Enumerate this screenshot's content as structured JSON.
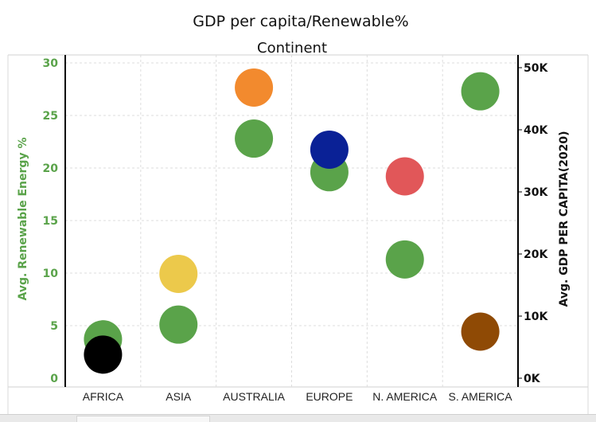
{
  "chart_data": {
    "type": "scatter",
    "title": "GDP per capita/Renewable%",
    "subtitle": "Continent",
    "categories": [
      "AFRICA",
      "ASIA",
      "AUSTRALIA",
      "EUROPE",
      "N. AMERICA",
      "S. AMERICA"
    ],
    "y_left": {
      "label": "Avg. Renewable Energy %",
      "range": [
        0,
        30
      ],
      "ticks": [
        "0",
        "5",
        "10",
        "15",
        "20",
        "25",
        "30"
      ],
      "color": "#5aa34a"
    },
    "y_right": {
      "label": "Avg. GDP PER CAPITA(2020)",
      "range": [
        0,
        50000
      ],
      "ticks": [
        "0K",
        "10K",
        "20K",
        "30K",
        "40K",
        "50K"
      ]
    },
    "series": [
      {
        "axis": "left",
        "color": "#5aa34a",
        "values": [
          3.7,
          5.1,
          22.8,
          19.6,
          11.3,
          27.3
        ]
      },
      {
        "axis": "right",
        "colors": [
          "#000000",
          "#ecc94b",
          "#f28a2e",
          "#0a2196",
          "#e15759",
          "#8f4a05"
        ],
        "values": [
          3800,
          16800,
          46800,
          36800,
          32500,
          7500
        ]
      }
    ],
    "grid": true,
    "legend": "none"
  }
}
